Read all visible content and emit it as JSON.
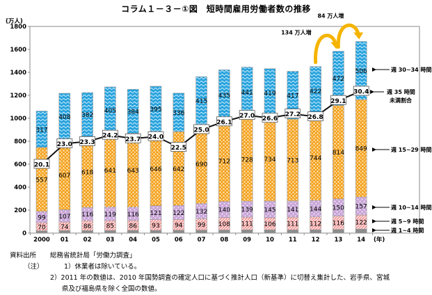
{
  "title": "コラム１－３－①図　短時間雇用労働者数の推移",
  "chart_data": {
    "type": "bar",
    "stacked": true,
    "title": "コラム１－３－①図　短時間雇用労働者数の推移",
    "ylabel": "(万人)",
    "xlabel": "(年)",
    "ylim": [
      0,
      1800
    ],
    "yticks": [
      0,
      200,
      400,
      600,
      800,
      1000,
      1200,
      1400,
      1600,
      1800
    ],
    "categories": [
      "2000",
      "01",
      "02",
      "03",
      "04",
      "05",
      "06",
      "07",
      "08",
      "09",
      "10",
      "11",
      "12",
      "13",
      "14"
    ],
    "series": [
      {
        "name": "週 1~4 時間",
        "color": "#8c8c8c",
        "values": [
          20,
          22,
          22,
          23,
          24,
          24,
          25,
          26,
          27,
          28,
          28,
          28,
          29,
          32,
          35
        ],
        "labeled": false
      },
      {
        "name": "週 5~9 時間",
        "color": "#f4a0a0",
        "values": [
          70,
          74,
          86,
          85,
          86,
          93,
          94,
          99,
          108,
          111,
          106,
          111,
          112,
          116,
          122
        ],
        "labeled": true
      },
      {
        "name": "週 10~14 時間",
        "color": "#c9a6d8",
        "values": [
          99,
          107,
          116,
          119,
          116,
          121,
          122,
          132,
          140,
          139,
          145,
          141,
          144,
          150,
          157
        ],
        "labeled": true
      },
      {
        "name": "週 15~29 時間",
        "color": "#f4a221",
        "values": [
          557,
          607,
          618,
          641,
          643,
          646,
          642,
          690,
          712,
          728,
          734,
          713,
          744,
          814,
          849
        ],
        "labeled": true
      },
      {
        "name": "週 30~34 時間",
        "color": "#2aa4dd",
        "values": [
          317,
          408,
          382,
          405,
          384,
          395,
          336,
          415,
          435,
          441,
          419,
          417,
          422,
          472,
          506
        ],
        "labeled": true
      }
    ],
    "line_series": {
      "name": "週 35 時間未満割合",
      "unit": "%",
      "values": [
        20.1,
        23.0,
        23.3,
        24.2,
        23.7,
        24.0,
        22.5,
        25.0,
        26.1,
        27.0,
        26.6,
        27.2,
        26.8,
        29.1,
        30.4
      ]
    },
    "legend": {
      "placement": "right",
      "entries": [
        "週 30~34 時間",
        "週 35 時間\n未満割合",
        "週 15~29 時間",
        "週 10~14 時間",
        "週 5~9 時間",
        "週 1~4 時間"
      ]
    },
    "annotations": [
      {
        "text": "134 万人増",
        "from": "12",
        "to": "13"
      },
      {
        "text": "84 万人増",
        "from": "13",
        "to": "14"
      }
    ],
    "grid": false
  },
  "legend_labels": {
    "s30": "週 30~34 時間",
    "ratio1": "週 35 時間",
    "ratio2": "未満割合",
    "s15": "週 15~29 時間",
    "s10": "週 10~14 時間",
    "s5": "週 5~9 時間",
    "s1": "週 1~4 時間"
  },
  "notes": {
    "source_label": "資料出所",
    "source_text": "総務省統計局「労働力調査」",
    "note_label": "（注）",
    "note1": "1）休業者は除いている。",
    "note2a": "2）2011 年の数値は、2010 年国勢調査の確定人口に基づく推計人口（新基準）に切替え集計した、岩手県、宮城",
    "note2b": "県及び福島県を除く全国の数値。"
  }
}
